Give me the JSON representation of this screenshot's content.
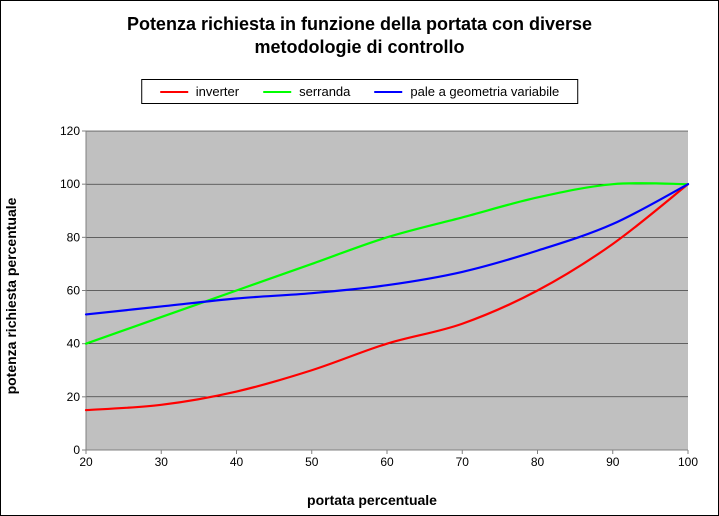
{
  "chart": {
    "type": "line",
    "title_line1": "Potenza richiesta in funzione della portata con diverse",
    "title_line2": "metodologie di controllo",
    "title_fontsize": 18,
    "title_fontweight": "bold",
    "xlabel": "portata percentuale",
    "ylabel": "potenza richiesta percentuale",
    "axis_label_fontsize": 14,
    "axis_label_fontweight": "bold",
    "tick_fontsize": 12,
    "background_color": "#ffffff",
    "plot_background_color": "#c0c0c0",
    "grid_color": "#000000",
    "grid_line_width": 0.5,
    "axis_color": "#808080",
    "xlim": [
      20,
      100
    ],
    "ylim": [
      0,
      120
    ],
    "xtick_step": 10,
    "ytick_step": 20,
    "line_width": 2.2,
    "marker": "none",
    "series": [
      {
        "name": "inverter",
        "color": "#ff0000",
        "x": [
          20,
          30,
          40,
          50,
          60,
          70,
          80,
          90,
          100
        ],
        "y": [
          15,
          17,
          22,
          30,
          40,
          47.5,
          60,
          77.5,
          100
        ]
      },
      {
        "name": "serranda",
        "color": "#00ff00",
        "x": [
          20,
          30,
          40,
          50,
          60,
          70,
          80,
          90,
          100
        ],
        "y": [
          40,
          50,
          60,
          70,
          80,
          87.5,
          95,
          100,
          100
        ]
      },
      {
        "name": "pale a geometria variabile",
        "color": "#0000ff",
        "x": [
          20,
          30,
          40,
          50,
          60,
          70,
          80,
          90,
          100
        ],
        "y": [
          51,
          54,
          57,
          59,
          62,
          67,
          75,
          85,
          100
        ]
      }
    ],
    "legend": {
      "position": "top",
      "border_color": "#000000",
      "background_color": "#ffffff",
      "fontsize": 13
    }
  }
}
